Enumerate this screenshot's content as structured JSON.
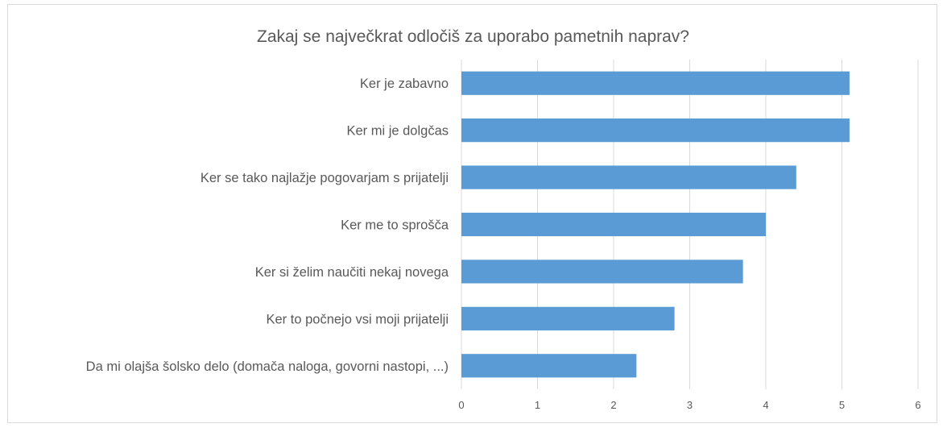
{
  "chart_data": {
    "type": "bar",
    "orientation": "horizontal",
    "title": "Zakaj se največkrat odločiš za uporabo pametnih naprav?",
    "xlabel": "",
    "ylabel": "",
    "categories": [
      "Ker je zabavno",
      "Ker mi je dolgčas",
      "Ker se tako najlažje pogovarjam s prijatelji",
      "Ker me to sprošča",
      "Ker si želim naučiti nekaj novega",
      "Ker to počnejo vsi moji prijatelji",
      "Da mi olajša šolsko delo (domača naloga, govorni nastopi, ...)"
    ],
    "values": [
      5.1,
      5.1,
      4.4,
      4.0,
      3.7,
      2.8,
      2.3
    ],
    "xlim": [
      0,
      6
    ],
    "xticks": [
      "0",
      "1",
      "2",
      "3",
      "4",
      "5",
      "6"
    ],
    "grid": true,
    "bar_color": "#5b9bd5",
    "grid_color": "#d9d9d9"
  }
}
